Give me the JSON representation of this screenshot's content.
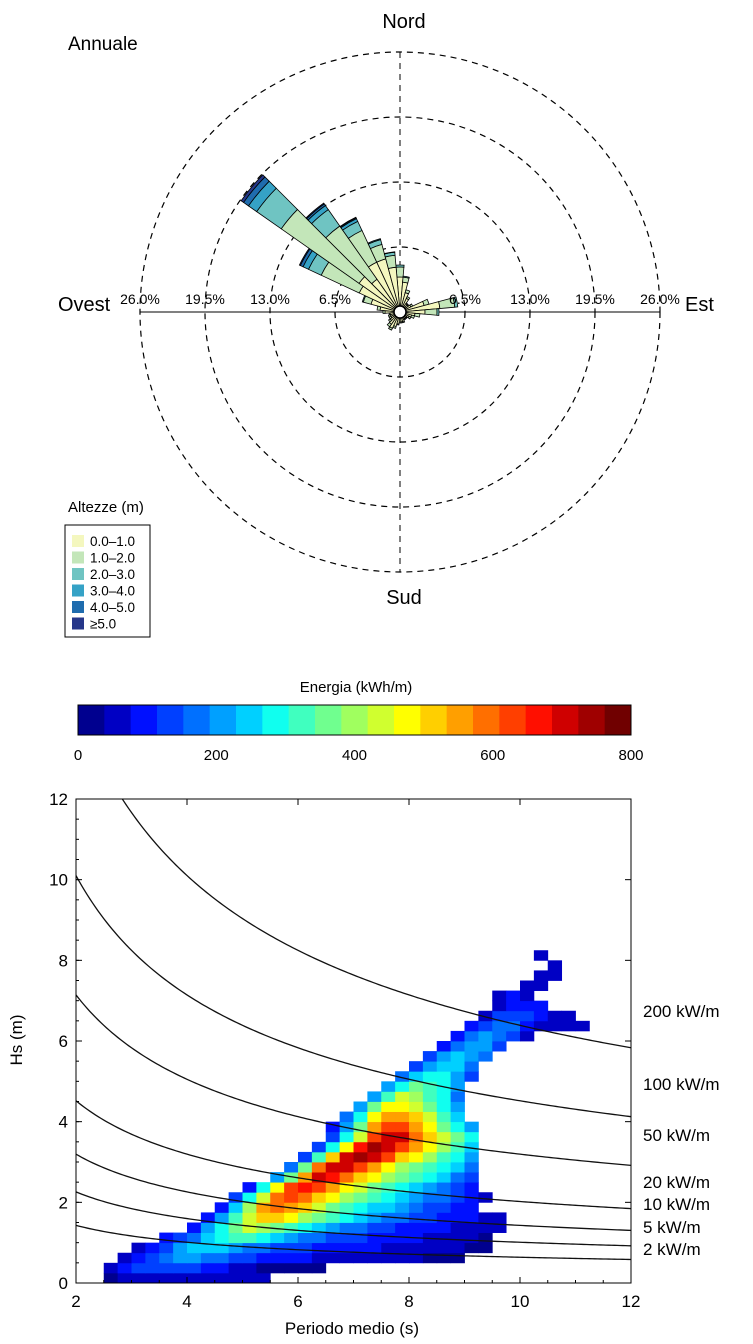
{
  "chart_data": [
    {
      "type": "polar-bar",
      "title": "Annuale",
      "directions": {
        "north": "Nord",
        "south": "Sud",
        "east": "Est",
        "west": "Ovest"
      },
      "ring_labels": [
        "6.5%",
        "13.0%",
        "19.5%",
        "26.0%"
      ],
      "ring_values": [
        6.5,
        13.0,
        19.5,
        26.0
      ],
      "legend_title": "Altezze (m)",
      "legend": [
        "0.0–1.0",
        "1.0–2.0",
        "2.0–3.0",
        "3.0–4.0",
        "4.0–5.0",
        "≥5.0"
      ],
      "colors": [
        "#f4f7bf",
        "#c3e6b9",
        "#6fc4c2",
        "#35a2c6",
        "#1f6cae",
        "#26378a"
      ],
      "sector_width_deg": 10,
      "sectors": [
        {
          "dir": 0,
          "values": [
            3.5,
            1.0,
            0.2,
            0.0,
            0,
            0
          ]
        },
        {
          "dir": 10,
          "values": [
            3.0,
            0.5,
            0.1,
            0,
            0,
            0
          ]
        },
        {
          "dir": 20,
          "values": [
            2.0,
            0.3,
            0,
            0,
            0,
            0
          ]
        },
        {
          "dir": 30,
          "values": [
            1.5,
            0.2,
            0,
            0,
            0,
            0
          ]
        },
        {
          "dir": 40,
          "values": [
            1.0,
            0.1,
            0,
            0,
            0,
            0
          ]
        },
        {
          "dir": 50,
          "values": [
            1.0,
            0.1,
            0,
            0,
            0,
            0
          ]
        },
        {
          "dir": 60,
          "values": [
            1.2,
            0.2,
            0,
            0,
            0,
            0
          ]
        },
        {
          "dir": 70,
          "values": [
            2.5,
            0.5,
            0,
            0,
            0,
            0
          ]
        },
        {
          "dir": 80,
          "values": [
            4.0,
            1.5,
            0.3,
            0,
            0,
            0
          ]
        },
        {
          "dir": 90,
          "values": [
            2.5,
            1.2,
            0.2,
            0,
            0,
            0
          ]
        },
        {
          "dir": 100,
          "values": [
            1.5,
            0.5,
            0,
            0,
            0,
            0
          ]
        },
        {
          "dir": 110,
          "values": [
            1.2,
            0.3,
            0,
            0,
            0,
            0
          ]
        },
        {
          "dir": 120,
          "values": [
            1.0,
            0.2,
            0,
            0,
            0,
            0
          ]
        },
        {
          "dir": 130,
          "values": [
            0.8,
            0.1,
            0,
            0,
            0,
            0
          ]
        },
        {
          "dir": 140,
          "values": [
            0.8,
            0.1,
            0,
            0,
            0,
            0
          ]
        },
        {
          "dir": 150,
          "values": [
            0.8,
            0.1,
            0,
            0,
            0,
            0
          ]
        },
        {
          "dir": 160,
          "values": [
            1.0,
            0.1,
            0,
            0,
            0,
            0
          ]
        },
        {
          "dir": 170,
          "values": [
            1.0,
            0.1,
            0,
            0,
            0,
            0
          ]
        },
        {
          "dir": 180,
          "values": [
            1.0,
            0.1,
            0,
            0,
            0,
            0
          ]
        },
        {
          "dir": 190,
          "values": [
            1.2,
            0.1,
            0,
            0,
            0,
            0
          ]
        },
        {
          "dir": 200,
          "values": [
            1.5,
            0.2,
            0,
            0,
            0,
            0
          ]
        },
        {
          "dir": 210,
          "values": [
            1.8,
            0.2,
            0,
            0,
            0,
            0
          ]
        },
        {
          "dir": 220,
          "values": [
            1.5,
            0.3,
            0,
            0,
            0,
            0
          ]
        },
        {
          "dir": 230,
          "values": [
            1.2,
            0.2,
            0,
            0,
            0,
            0
          ]
        },
        {
          "dir": 240,
          "values": [
            1.0,
            0.2,
            0,
            0,
            0,
            0
          ]
        },
        {
          "dir": 250,
          "values": [
            1.0,
            0.2,
            0,
            0,
            0,
            0
          ]
        },
        {
          "dir": 260,
          "values": [
            1.0,
            0.1,
            0,
            0,
            0,
            0
          ]
        },
        {
          "dir": 270,
          "values": [
            1.5,
            0.2,
            0,
            0,
            0,
            0
          ]
        },
        {
          "dir": 280,
          "values": [
            2.0,
            0.3,
            0,
            0,
            0,
            0
          ]
        },
        {
          "dir": 290,
          "values": [
            3.0,
            0.8,
            0.1,
            0,
            0,
            0
          ]
        },
        {
          "dir": 300,
          "values": [
            4.5,
            4.2,
            1.4,
            0.6,
            0.3,
            0.1
          ]
        },
        {
          "dir": 310,
          "values": [
            5.0,
            9.5,
            3.0,
            1.0,
            0.6,
            0.3
          ]
        },
        {
          "dir": 320,
          "values": [
            4.0,
            6.5,
            2.0,
            0.5,
            0.2,
            0.1
          ]
        },
        {
          "dir": 330,
          "values": [
            5.5,
            3.5,
            1.0,
            0.3,
            0.1,
            0.05
          ]
        },
        {
          "dir": 340,
          "values": [
            5.5,
            1.5,
            0.5,
            0.1,
            0,
            0
          ]
        },
        {
          "dir": 350,
          "values": [
            4.5,
            1.2,
            0.3,
            0.05,
            0,
            0
          ]
        }
      ]
    },
    {
      "type": "heatmap",
      "xlabel": "Periodo medio (s)",
      "ylabel": "Hs (m)",
      "xlim": [
        2,
        12
      ],
      "ylim": [
        0,
        12
      ],
      "xticks": [
        "2",
        "4",
        "6",
        "8",
        "10",
        "12"
      ],
      "yticks": [
        "0",
        "2",
        "4",
        "6",
        "8",
        "10",
        "12"
      ],
      "colorbar": {
        "label": "Energia (kWh/m)",
        "range": [
          0,
          800
        ],
        "ticks": [
          "0",
          "200",
          "400",
          "600",
          "800"
        ],
        "colors": [
          "#00008f",
          "#0000c4",
          "#0010ff",
          "#0040ff",
          "#0070ff",
          "#00a0ff",
          "#00d0ff",
          "#10ffef",
          "#40ffbf",
          "#70ff8f",
          "#a0ff5f",
          "#d0ff2f",
          "#ffff00",
          "#ffcf00",
          "#ff9f00",
          "#ff6f00",
          "#ff3f00",
          "#ff0f00",
          "#cf0000",
          "#9f0000",
          "#700000"
        ]
      },
      "contours": [
        {
          "label": "2 kW/m",
          "P": 2
        },
        {
          "label": "5 kW/m",
          "P": 5
        },
        {
          "label": "10 kW/m",
          "P": 10
        },
        {
          "label": "20 kW/m",
          "P": 20
        },
        {
          "label": "50 kW/m",
          "P": 50
        },
        {
          "label": "100 kW/m",
          "P": 100
        },
        {
          "label": "200 kW/m",
          "P": 200
        }
      ],
      "cell_width_s": 0.25,
      "cell_height_m": 0.25,
      "rows": [
        {
          "hs": 0.0,
          "t0": 2.5,
          "values": [
            20,
            40,
            40,
            40,
            40,
            40,
            40,
            40,
            40,
            40,
            40,
            40
          ]
        },
        {
          "hs": 0.25,
          "t0": 2.5,
          "values": [
            60,
            90,
            120,
            140,
            140,
            130,
            120,
            100,
            80,
            60,
            40,
            30,
            20,
            20,
            20,
            20
          ]
        },
        {
          "hs": 0.5,
          "t0": 2.75,
          "values": [
            60,
            100,
            140,
            180,
            200,
            200,
            190,
            170,
            150,
            130,
            110,
            100,
            90,
            80,
            70,
            70,
            60,
            60,
            50,
            50,
            40,
            40,
            30,
            30,
            30
          ]
        },
        {
          "hs": 0.75,
          "t0": 3.0,
          "values": [
            50,
            100,
            150,
            200,
            230,
            240,
            230,
            210,
            190,
            170,
            150,
            130,
            120,
            110,
            100,
            90,
            80,
            80,
            70,
            60,
            60,
            50,
            40,
            40,
            30,
            30
          ]
        },
        {
          "hs": 1.0,
          "t0": 3.5,
          "values": [
            80,
            130,
            190,
            250,
            300,
            320,
            310,
            280,
            250,
            220,
            190,
            170,
            150,
            130,
            120,
            110,
            100,
            90,
            80,
            70,
            60,
            50,
            40,
            30
          ]
        },
        {
          "hs": 1.25,
          "t0": 4.0,
          "values": [
            100,
            200,
            300,
            380,
            420,
            400,
            360,
            320,
            280,
            240,
            210,
            180,
            160,
            140,
            130,
            110,
            100,
            90,
            80,
            70,
            60,
            50,
            40
          ]
        },
        {
          "hs": 1.5,
          "t0": 4.25,
          "values": [
            80,
            200,
            330,
            440,
            520,
            520,
            470,
            410,
            360,
            310,
            270,
            240,
            210,
            190,
            170,
            150,
            130,
            110,
            100,
            80,
            60,
            50
          ]
        },
        {
          "hs": 1.75,
          "t0": 4.5,
          "values": [
            100,
            250,
            400,
            540,
            600,
            560,
            500,
            440,
            380,
            330,
            290,
            260,
            230,
            200,
            180,
            150,
            120,
            100,
            80
          ]
        },
        {
          "hs": 2.0,
          "t0": 4.75,
          "values": [
            120,
            270,
            440,
            600,
            640,
            590,
            530,
            460,
            400,
            350,
            310,
            280,
            250,
            220,
            190,
            160,
            120,
            100,
            60
          ]
        },
        {
          "hs": 2.25,
          "t0": 5.0,
          "values": [
            100,
            280,
            460,
            620,
            680,
            620,
            540,
            480,
            420,
            370,
            320,
            290,
            260,
            220,
            190,
            150,
            100
          ]
        },
        {
          "hs": 2.5,
          "t0": 5.5,
          "values": [
            200,
            380,
            560,
            700,
            680,
            600,
            520,
            460,
            400,
            350,
            310,
            270,
            230,
            190,
            150
          ]
        },
        {
          "hs": 2.75,
          "t0": 5.75,
          "values": [
            180,
            380,
            580,
            720,
            700,
            620,
            540,
            470,
            410,
            360,
            310,
            270,
            230,
            180
          ]
        },
        {
          "hs": 3.0,
          "t0": 6.0,
          "values": [
            150,
            320,
            500,
            700,
            760,
            700,
            610,
            530,
            460,
            400,
            340,
            280,
            220
          ]
        },
        {
          "hs": 3.25,
          "t0": 6.25,
          "values": [
            140,
            300,
            480,
            680,
            760,
            720,
            620,
            540,
            460,
            390,
            320,
            250
          ]
        },
        {
          "hs": 3.5,
          "t0": 6.5,
          "values": [
            120,
            280,
            450,
            630,
            720,
            690,
            600,
            520,
            440,
            360,
            280
          ]
        },
        {
          "hs": 3.75,
          "t0": 6.5,
          "values": [
            80,
            220,
            380,
            550,
            640,
            620,
            540,
            460,
            380,
            300,
            220
          ]
        },
        {
          "hs": 4.0,
          "t0": 6.75,
          "values": [
            160,
            300,
            460,
            560,
            560,
            500,
            420,
            340,
            250
          ]
        },
        {
          "hs": 4.25,
          "t0": 7.0,
          "values": [
            200,
            360,
            460,
            480,
            440,
            370,
            290,
            200
          ]
        },
        {
          "hs": 4.5,
          "t0": 7.25,
          "values": [
            220,
            340,
            420,
            400,
            340,
            270,
            180
          ]
        },
        {
          "hs": 4.75,
          "t0": 7.5,
          "values": [
            200,
            300,
            360,
            340,
            280,
            200
          ]
        },
        {
          "hs": 5.0,
          "t0": 7.75,
          "values": [
            160,
            240,
            300,
            280,
            220,
            150
          ]
        },
        {
          "hs": 5.25,
          "t0": 8.0,
          "values": [
            140,
            220,
            260,
            240,
            180
          ]
        },
        {
          "hs": 5.5,
          "t0": 8.25,
          "values": [
            120,
            200,
            240,
            220,
            160
          ]
        },
        {
          "hs": 5.75,
          "t0": 8.5,
          "values": [
            100,
            180,
            220,
            200,
            140
          ]
        },
        {
          "hs": 6.0,
          "t0": 8.75,
          "values": [
            90,
            160,
            200,
            180,
            120,
            60
          ]
        },
        {
          "hs": 6.25,
          "t0": 9.0,
          "values": [
            80,
            140,
            180,
            160,
            100,
            60,
            60,
            60,
            60
          ]
        },
        {
          "hs": 6.5,
          "t0": 9.25,
          "values": [
            70,
            120,
            140,
            120,
            80,
            60,
            60
          ]
        },
        {
          "hs": 6.75,
          "t0": 9.5,
          "values": [
            60,
            100,
            100,
            80
          ]
        },
        {
          "hs": 7.0,
          "t0": 9.5,
          "values": [
            60,
            80,
            60
          ]
        },
        {
          "hs": 7.25,
          "t0": 10.0,
          "values": [
            60,
            60
          ]
        },
        {
          "hs": 7.5,
          "t0": 10.25,
          "values": [
            60,
            60
          ]
        },
        {
          "hs": 7.75,
          "t0": 10.5,
          "values": [
            60
          ]
        },
        {
          "hs": 8.0,
          "t0": 10.25,
          "values": [
            60
          ]
        }
      ]
    }
  ]
}
